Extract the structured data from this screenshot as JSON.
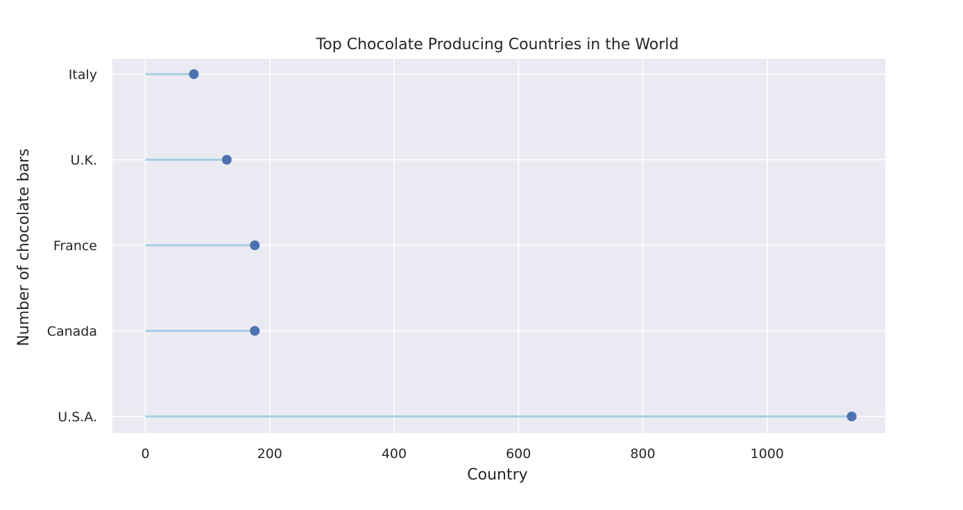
{
  "chart_data": {
    "type": "lollipop",
    "orientation": "horizontal",
    "title": "Top Chocolate Producing Countries in the World",
    "xlabel": "Country",
    "ylabel": "Number of chocolate bars",
    "categories": [
      "Italy",
      "U.K.",
      "France",
      "Canada",
      "U.S.A."
    ],
    "values": [
      78,
      131,
      176,
      176,
      1136
    ],
    "xlim": [
      -53,
      1190
    ],
    "xticks": [
      0,
      200,
      400,
      600,
      800,
      1000
    ],
    "grid": true,
    "colors": {
      "background": "#eaeaf2",
      "grid": "#ffffff",
      "stem": "#a6cee3",
      "marker": "#4c72b0"
    }
  }
}
